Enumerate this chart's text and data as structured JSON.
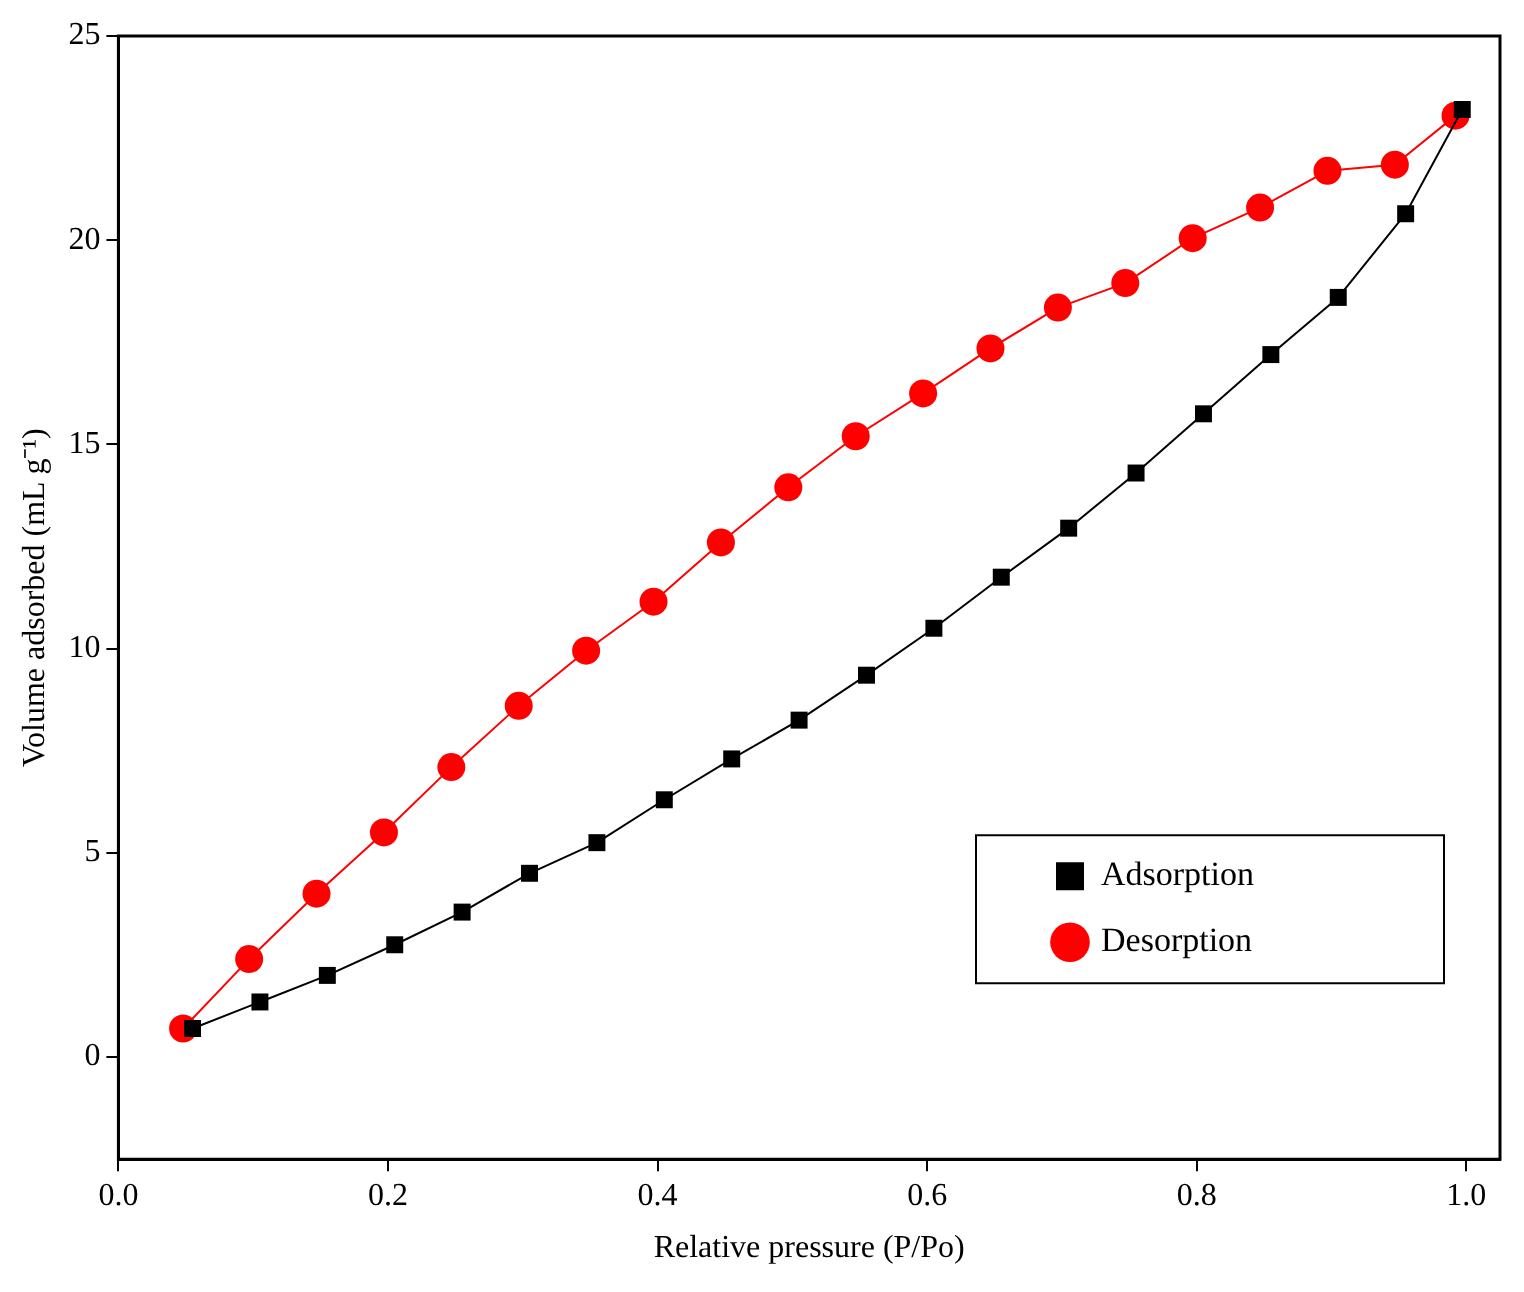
{
  "chart_data": {
    "type": "line",
    "xlabel": "Relative pressure (P/Po)",
    "ylabel": "Volume adsorbed (mL g⁻¹)",
    "xlim": [
      0,
      1.025
    ],
    "xticks": [
      {
        "value": 0,
        "label": "0.0"
      },
      {
        "value": 0.2,
        "label": "0.2"
      },
      {
        "value": 0.4,
        "label": "0.4"
      },
      {
        "value": 0.6,
        "label": "0.6"
      },
      {
        "value": 0.8,
        "label": "0.8"
      },
      {
        "value": 1,
        "label": "1.0"
      }
    ],
    "ylim": [
      -2.5,
      25
    ],
    "yticks": [
      0,
      5,
      10,
      15,
      20,
      25
    ],
    "grid": false,
    "legend": "bottom right",
    "line_style": "solid",
    "series": [
      {
        "name": "Adsorption",
        "color": "#000000",
        "marker": "square",
        "x": [
          0.055,
          0.105,
          0.155,
          0.205,
          0.255,
          0.305,
          0.355,
          0.405,
          0.455,
          0.505,
          0.555,
          0.605,
          0.655,
          0.705,
          0.755,
          0.805,
          0.855,
          0.905,
          0.955,
          0.997
        ],
        "values": [
          0.7,
          1.35,
          2.0,
          2.75,
          3.55,
          4.5,
          5.25,
          6.3,
          7.3,
          8.25,
          9.35,
          10.5,
          11.75,
          12.95,
          14.3,
          15.75,
          17.2,
          18.6,
          20.65,
          23.2
        ]
      },
      {
        "name": "Desorption",
        "color": "#ff0000",
        "marker": "circle",
        "x": [
          0.048,
          0.097,
          0.147,
          0.197,
          0.247,
          0.297,
          0.347,
          0.397,
          0.447,
          0.497,
          0.547,
          0.597,
          0.647,
          0.697,
          0.747,
          0.797,
          0.847,
          0.897,
          0.947,
          0.992
        ],
        "values": [
          0.7,
          2.4,
          4.0,
          5.5,
          7.1,
          8.6,
          9.95,
          11.15,
          12.6,
          13.95,
          15.2,
          16.25,
          17.35,
          18.35,
          18.95,
          20.05,
          20.8,
          21.7,
          21.85,
          23.05
        ]
      }
    ]
  }
}
